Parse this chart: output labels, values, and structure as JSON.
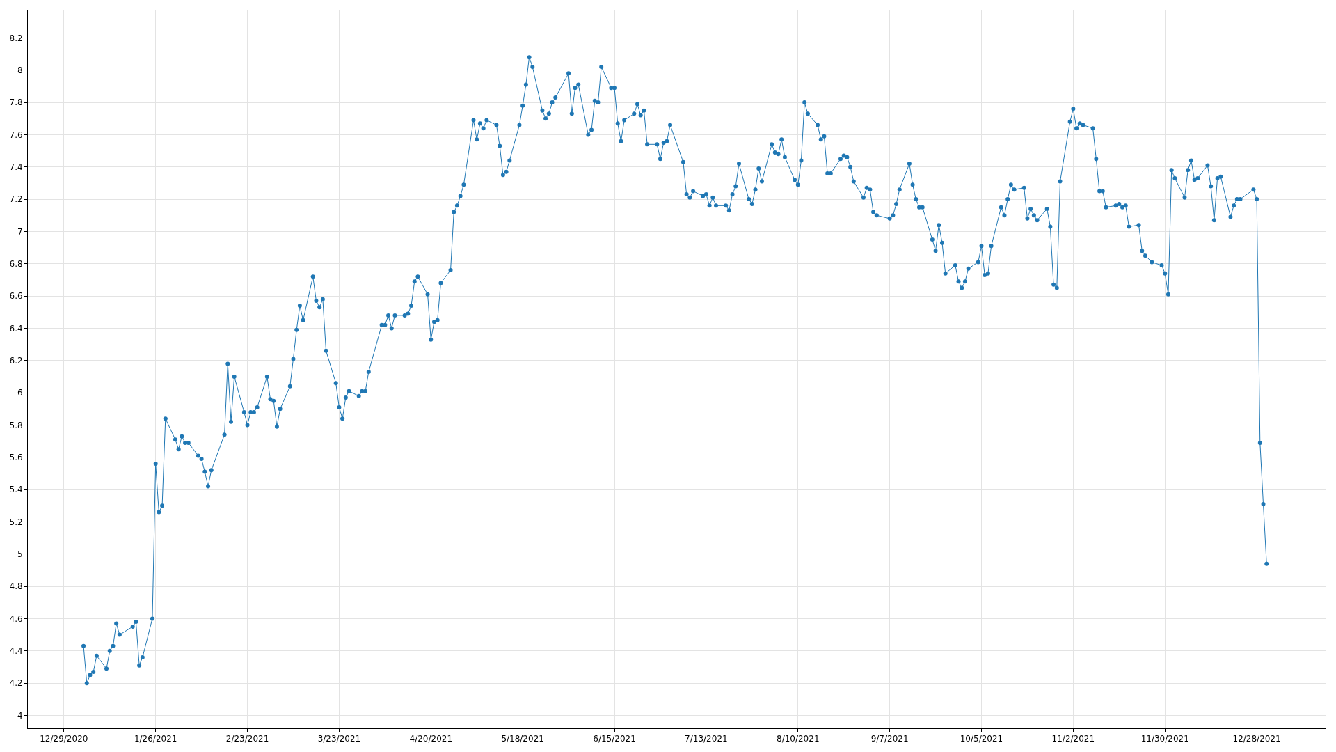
{
  "chart_data": {
    "type": "line",
    "x": [
      "2021-01-04",
      "2021-01-05",
      "2021-01-06",
      "2021-01-07",
      "2021-01-08",
      "2021-01-11",
      "2021-01-12",
      "2021-01-13",
      "2021-01-14",
      "2021-01-15",
      "2021-01-19",
      "2021-01-20",
      "2021-01-21",
      "2021-01-22",
      "2021-01-25",
      "2021-01-26",
      "2021-01-27",
      "2021-01-28",
      "2021-01-29",
      "2021-02-01",
      "2021-02-02",
      "2021-02-03",
      "2021-02-04",
      "2021-02-05",
      "2021-02-08",
      "2021-02-09",
      "2021-02-10",
      "2021-02-11",
      "2021-02-12",
      "2021-02-16",
      "2021-02-17",
      "2021-02-18",
      "2021-02-19",
      "2021-02-22",
      "2021-02-23",
      "2021-02-24",
      "2021-02-25",
      "2021-02-26",
      "2021-03-01",
      "2021-03-02",
      "2021-03-03",
      "2021-03-04",
      "2021-03-05",
      "2021-03-08",
      "2021-03-09",
      "2021-03-10",
      "2021-03-11",
      "2021-03-12",
      "2021-03-15",
      "2021-03-16",
      "2021-03-17",
      "2021-03-18",
      "2021-03-19",
      "2021-03-22",
      "2021-03-23",
      "2021-03-24",
      "2021-03-25",
      "2021-03-26",
      "2021-03-29",
      "2021-03-30",
      "2021-03-31",
      "2021-04-01",
      "2021-04-05",
      "2021-04-06",
      "2021-04-07",
      "2021-04-08",
      "2021-04-09",
      "2021-04-12",
      "2021-04-13",
      "2021-04-14",
      "2021-04-15",
      "2021-04-16",
      "2021-04-19",
      "2021-04-20",
      "2021-04-21",
      "2021-04-22",
      "2021-04-23",
      "2021-04-26",
      "2021-04-27",
      "2021-04-28",
      "2021-04-29",
      "2021-04-30",
      "2021-05-03",
      "2021-05-04",
      "2021-05-05",
      "2021-05-06",
      "2021-05-07",
      "2021-05-10",
      "2021-05-11",
      "2021-05-12",
      "2021-05-13",
      "2021-05-14",
      "2021-05-17",
      "2021-05-18",
      "2021-05-19",
      "2021-05-20",
      "2021-05-21",
      "2021-05-24",
      "2021-05-25",
      "2021-05-26",
      "2021-05-27",
      "2021-05-28",
      "2021-06-01",
      "2021-06-02",
      "2021-06-03",
      "2021-06-04",
      "2021-06-07",
      "2021-06-08",
      "2021-06-09",
      "2021-06-10",
      "2021-06-11",
      "2021-06-14",
      "2021-06-15",
      "2021-06-16",
      "2021-06-17",
      "2021-06-18",
      "2021-06-21",
      "2021-06-22",
      "2021-06-23",
      "2021-06-24",
      "2021-06-25",
      "2021-06-28",
      "2021-06-29",
      "2021-06-30",
      "2021-07-01",
      "2021-07-02",
      "2021-07-06",
      "2021-07-07",
      "2021-07-08",
      "2021-07-09",
      "2021-07-12",
      "2021-07-13",
      "2021-07-14",
      "2021-07-15",
      "2021-07-16",
      "2021-07-19",
      "2021-07-20",
      "2021-07-21",
      "2021-07-22",
      "2021-07-23",
      "2021-07-26",
      "2021-07-27",
      "2021-07-28",
      "2021-07-29",
      "2021-07-30",
      "2021-08-02",
      "2021-08-03",
      "2021-08-04",
      "2021-08-05",
      "2021-08-06",
      "2021-08-09",
      "2021-08-10",
      "2021-08-11",
      "2021-08-12",
      "2021-08-13",
      "2021-08-16",
      "2021-08-17",
      "2021-08-18",
      "2021-08-19",
      "2021-08-20",
      "2021-08-23",
      "2021-08-24",
      "2021-08-25",
      "2021-08-26",
      "2021-08-27",
      "2021-08-30",
      "2021-08-31",
      "2021-09-01",
      "2021-09-02",
      "2021-09-03",
      "2021-09-07",
      "2021-09-08",
      "2021-09-09",
      "2021-09-10",
      "2021-09-13",
      "2021-09-14",
      "2021-09-15",
      "2021-09-16",
      "2021-09-17",
      "2021-09-20",
      "2021-09-21",
      "2021-09-22",
      "2021-09-23",
      "2021-09-24",
      "2021-09-27",
      "2021-09-28",
      "2021-09-29",
      "2021-09-30",
      "2021-10-01",
      "2021-10-04",
      "2021-10-05",
      "2021-10-06",
      "2021-10-07",
      "2021-10-08",
      "2021-10-11",
      "2021-10-12",
      "2021-10-13",
      "2021-10-14",
      "2021-10-15",
      "2021-10-18",
      "2021-10-19",
      "2021-10-20",
      "2021-10-21",
      "2021-10-22",
      "2021-10-25",
      "2021-10-26",
      "2021-10-27",
      "2021-10-28",
      "2021-10-29",
      "2021-11-01",
      "2021-11-02",
      "2021-11-03",
      "2021-11-04",
      "2021-11-05",
      "2021-11-08",
      "2021-11-09",
      "2021-11-10",
      "2021-11-11",
      "2021-11-12",
      "2021-11-15",
      "2021-11-16",
      "2021-11-17",
      "2021-11-18",
      "2021-11-19",
      "2021-11-22",
      "2021-11-23",
      "2021-11-24",
      "2021-11-26",
      "2021-11-29",
      "2021-11-30",
      "2021-12-01",
      "2021-12-02",
      "2021-12-03",
      "2021-12-06",
      "2021-12-07",
      "2021-12-08",
      "2021-12-09",
      "2021-12-10",
      "2021-12-13",
      "2021-12-14",
      "2021-12-15",
      "2021-12-16",
      "2021-12-17",
      "2021-12-20",
      "2021-12-21",
      "2021-12-22",
      "2021-12-23",
      "2021-12-27",
      "2021-12-28",
      "2021-12-29",
      "2021-12-30",
      "2021-12-31"
    ],
    "series": [
      {
        "color": "#1f77b4",
        "values": [
          4.43,
          4.2,
          4.25,
          4.27,
          4.37,
          4.29,
          4.4,
          4.43,
          4.57,
          4.5,
          4.55,
          4.58,
          4.31,
          4.36,
          4.6,
          5.56,
          5.26,
          5.3,
          5.84,
          5.71,
          5.65,
          5.73,
          5.69,
          5.69,
          5.61,
          5.59,
          5.51,
          5.42,
          5.52,
          5.74,
          6.18,
          5.82,
          6.1,
          5.88,
          5.8,
          5.88,
          5.88,
          5.91,
          6.1,
          5.96,
          5.95,
          5.79,
          5.9,
          6.04,
          6.21,
          6.39,
          6.54,
          6.45,
          6.72,
          6.57,
          6.53,
          6.58,
          6.26,
          6.06,
          5.91,
          5.84,
          5.97,
          6.01,
          5.98,
          6.01,
          6.01,
          6.13,
          6.42,
          6.42,
          6.48,
          6.4,
          6.48,
          6.48,
          6.49,
          6.54,
          6.69,
          6.72,
          6.61,
          6.33,
          6.44,
          6.45,
          6.68,
          6.76,
          7.12,
          7.16,
          7.22,
          7.29,
          7.69,
          7.57,
          7.67,
          7.64,
          7.69,
          7.66,
          7.53,
          7.35,
          7.37,
          7.44,
          7.66,
          7.78,
          7.91,
          8.08,
          8.02,
          7.75,
          7.7,
          7.73,
          7.8,
          7.83,
          7.98,
          7.73,
          7.89,
          7.91,
          7.6,
          7.63,
          7.81,
          7.8,
          8.02,
          7.89,
          7.89,
          7.67,
          7.56,
          7.69,
          7.73,
          7.79,
          7.72,
          7.75,
          7.54,
          7.54,
          7.45,
          7.55,
          7.56,
          7.66,
          7.43,
          7.23,
          7.21,
          7.25,
          7.22,
          7.23,
          7.16,
          7.21,
          7.16,
          7.16,
          7.13,
          7.23,
          7.28,
          7.42,
          7.2,
          7.17,
          7.26,
          7.39,
          7.31,
          7.54,
          7.49,
          7.48,
          7.57,
          7.46,
          7.32,
          7.29,
          7.44,
          7.8,
          7.73,
          7.66,
          7.57,
          7.59,
          7.36,
          7.36,
          7.45,
          7.47,
          7.46,
          7.4,
          7.31,
          7.21,
          7.27,
          7.26,
          7.12,
          7.1,
          7.08,
          7.1,
          7.17,
          7.26,
          7.42,
          7.29,
          7.2,
          7.15,
          7.15,
          6.95,
          6.88,
          7.04,
          6.93,
          6.74,
          6.79,
          6.69,
          6.65,
          6.69,
          6.77,
          6.81,
          6.91,
          6.73,
          6.74,
          6.91,
          7.15,
          7.1,
          7.2,
          7.29,
          7.26,
          7.27,
          7.08,
          7.14,
          7.1,
          7.07,
          7.14,
          7.03,
          6.67,
          6.65,
          7.31,
          7.68,
          7.76,
          7.64,
          7.67,
          7.66,
          7.64,
          7.45,
          7.25,
          7.25,
          7.15,
          7.16,
          7.17,
          7.15,
          7.16,
          7.03,
          7.04,
          6.88,
          6.85,
          6.81,
          6.79,
          6.74,
          6.61,
          7.38,
          7.33,
          7.21,
          7.38,
          7.44,
          7.32,
          7.33,
          7.41,
          7.28,
          7.07,
          7.33,
          7.34,
          7.09,
          7.16,
          7.2,
          7.2,
          7.26,
          7.2,
          5.69,
          5.31,
          4.94
        ]
      }
    ],
    "xlim": [
      "2020-12-18",
      "2022-01-18"
    ],
    "xticks": [
      {
        "value": "2020-12-29",
        "label": "12/29/2020"
      },
      {
        "value": "2021-01-26",
        "label": "1/26/2021"
      },
      {
        "value": "2021-02-23",
        "label": "2/23/2021"
      },
      {
        "value": "2021-03-23",
        "label": "3/23/2021"
      },
      {
        "value": "2021-04-20",
        "label": "4/20/2021"
      },
      {
        "value": "2021-05-18",
        "label": "5/18/2021"
      },
      {
        "value": "2021-06-15",
        "label": "6/15/2021"
      },
      {
        "value": "2021-07-13",
        "label": "7/13/2021"
      },
      {
        "value": "2021-08-10",
        "label": "8/10/2021"
      },
      {
        "value": "2021-09-07",
        "label": "9/7/2021"
      },
      {
        "value": "2021-10-05",
        "label": "10/5/2021"
      },
      {
        "value": "2021-11-02",
        "label": "11/2/2021"
      },
      {
        "value": "2021-11-30",
        "label": "11/30/2021"
      },
      {
        "value": "2021-12-28",
        "label": "12/28/2021"
      }
    ],
    "ylim": [
      3.92,
      8.37
    ],
    "yticks": [
      4,
      4.2,
      4.4,
      4.6,
      4.8,
      5,
      5.2,
      5.4,
      5.6,
      5.8,
      6,
      6.2,
      6.4,
      6.6,
      6.8,
      7,
      7.2,
      7.4,
      7.6,
      7.8,
      8,
      8.2
    ],
    "grid": true,
    "marker": "circle",
    "line_style": "solid"
  }
}
